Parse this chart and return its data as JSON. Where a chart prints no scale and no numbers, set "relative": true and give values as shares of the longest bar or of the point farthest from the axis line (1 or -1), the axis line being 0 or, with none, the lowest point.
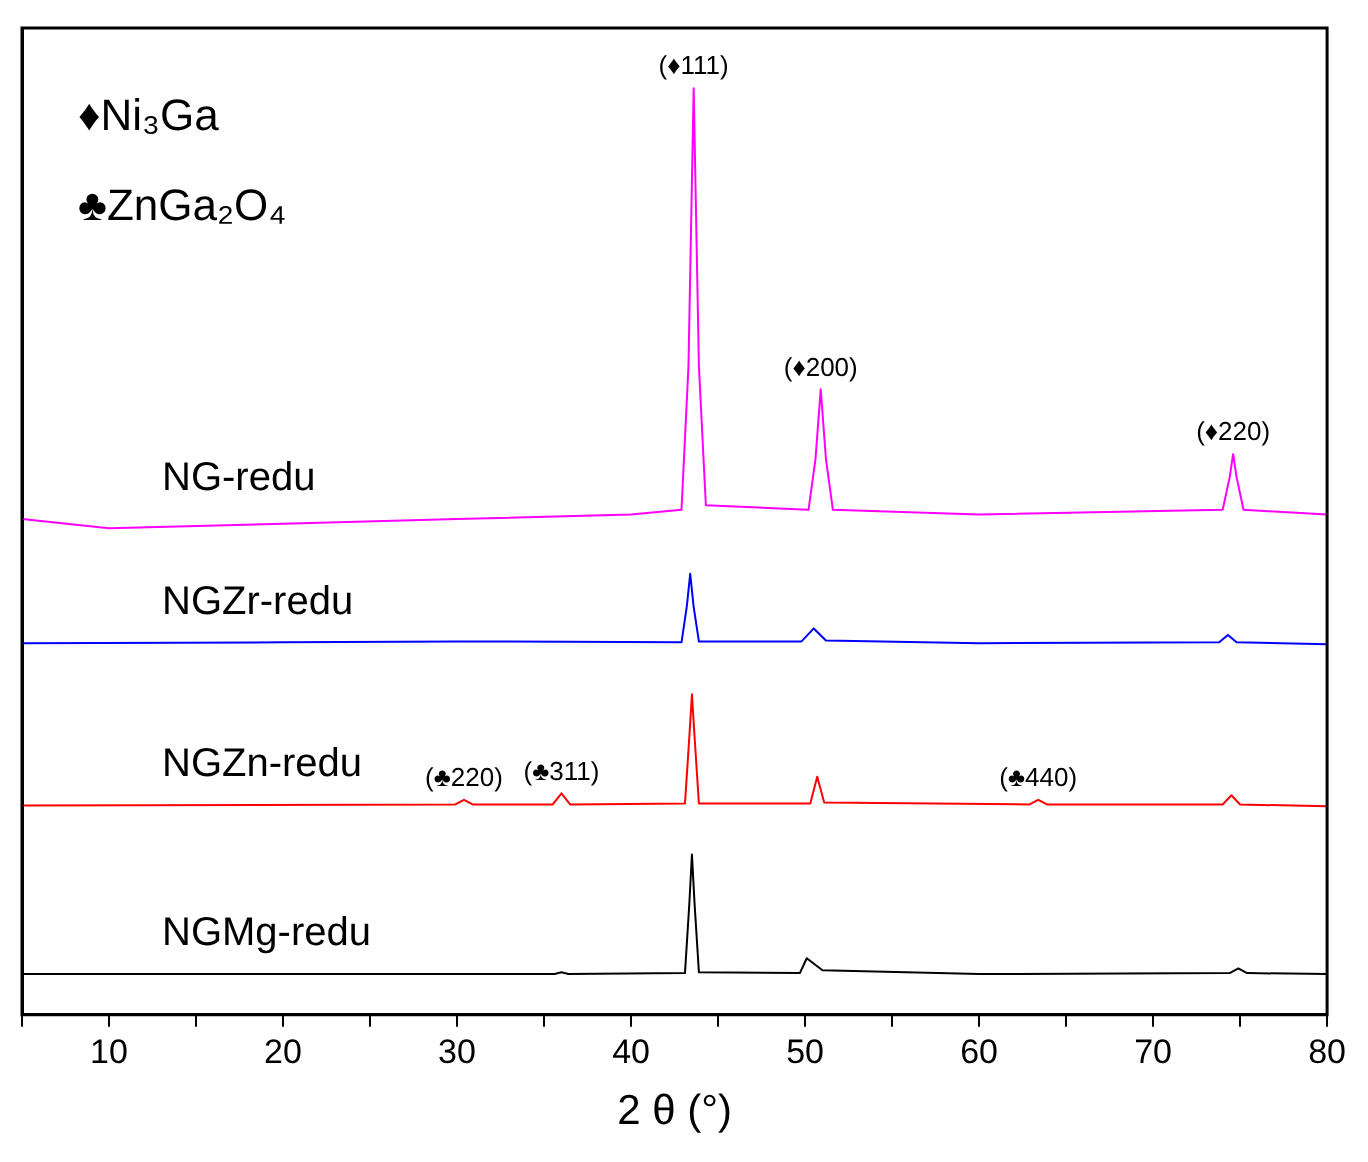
{
  "chart_data": {
    "type": "line",
    "relative": true,
    "xlabel": "2 θ (°)",
    "xlim": [
      5,
      80
    ],
    "xticks": [
      {
        "value": 5,
        "label": null
      },
      10,
      {
        "value": 15,
        "label": null
      },
      20,
      {
        "value": 25,
        "label": null
      },
      30,
      {
        "value": 35,
        "label": null
      },
      40,
      {
        "value": 45,
        "label": null
      },
      50,
      {
        "value": 55,
        "label": null
      },
      60,
      {
        "value": 65,
        "label": null
      },
      70,
      {
        "value": 75,
        "label": null
      },
      80
    ],
    "tick_labels": "x",
    "grid": false,
    "legend": false,
    "marker": "none",
    "line_style": "solid",
    "series": [
      {
        "name": "NG-redu",
        "color": "#ff00ff",
        "x": [
          5,
          10,
          20,
          30,
          40,
          42.9,
          43.3,
          43.6,
          43.9,
          44.3,
          50.2,
          50.6,
          50.9,
          51.2,
          51.6,
          60,
          74,
          74.4,
          74.6,
          74.8,
          75.2,
          80
        ],
        "values": [
          0.535,
          0.525,
          0.53,
          0.535,
          0.54,
          0.545,
          0.7,
          1.0,
          0.7,
          0.55,
          0.545,
          0.6,
          0.675,
          0.6,
          0.545,
          0.54,
          0.545,
          0.58,
          0.605,
          0.58,
          0.545,
          0.54
        ]
      },
      {
        "name": "NGZr-redu",
        "color": "#0000ff",
        "x": [
          5,
          20,
          30,
          42.9,
          43.2,
          43.4,
          43.6,
          43.9,
          49.8,
          50.5,
          51.2,
          60,
          73.8,
          74.3,
          74.8,
          80
        ],
        "values": [
          0.401,
          0.402,
          0.403,
          0.402,
          0.44,
          0.476,
          0.44,
          0.403,
          0.403,
          0.417,
          0.404,
          0.401,
          0.402,
          0.41,
          0.402,
          0.4
        ]
      },
      {
        "name": "NGZn-redu",
        "color": "#ff0000",
        "x": [
          5,
          29.9,
          30.4,
          30.9,
          35.5,
          36,
          36.5,
          43.1,
          43.35,
          43.5,
          43.65,
          43.9,
          50.3,
          50.7,
          51.1,
          62.9,
          63.4,
          63.9,
          74,
          74.5,
          75,
          80
        ],
        "values": [
          0.226,
          0.227,
          0.232,
          0.227,
          0.227,
          0.239,
          0.227,
          0.228,
          0.3,
          0.346,
          0.3,
          0.228,
          0.228,
          0.257,
          0.229,
          0.227,
          0.232,
          0.227,
          0.227,
          0.237,
          0.227,
          0.225
        ]
      },
      {
        "name": "NGMg-redu",
        "color": "#000000",
        "x": [
          5,
          30,
          35.6,
          36,
          36.4,
          43.1,
          43.35,
          43.5,
          43.65,
          43.9,
          49.7,
          50.1,
          51,
          60,
          74.4,
          74.9,
          75.4,
          80
        ],
        "values": [
          0.044,
          0.044,
          0.044,
          0.046,
          0.044,
          0.045,
          0.12,
          0.173,
          0.12,
          0.046,
          0.045,
          0.061,
          0.048,
          0.044,
          0.045,
          0.05,
          0.045,
          0.044
        ]
      }
    ],
    "annotations": [
      "♦Ni₃Ga",
      "♣ZnGa₂O₄",
      {
        "text": "(♦111)",
        "x": 43.6,
        "y": 1.0
      },
      {
        "text": "(♦200)",
        "x": 50.9,
        "y": 0.675
      },
      {
        "text": "(♦220)",
        "x": 74.6,
        "y": 0.605
      },
      {
        "text": "(♣220)",
        "x": 30.4,
        "y": 0.232
      },
      {
        "text": "(♣311)",
        "x": 36,
        "y": 0.239
      },
      {
        "text": "(♣440)",
        "x": 63.4,
        "y": 0.232
      }
    ]
  }
}
